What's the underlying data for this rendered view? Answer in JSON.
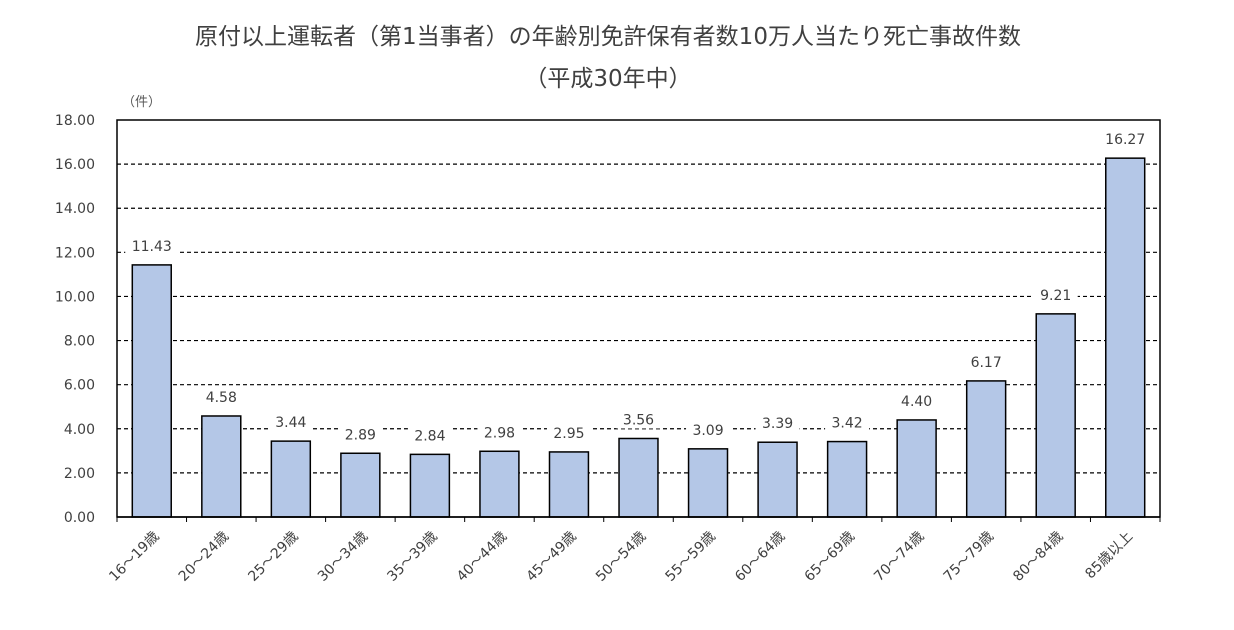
{
  "chart_data": {
    "type": "bar",
    "title_line1": "原付以上運転者（第1当事者）の年齢別免許保有者数10万人当たり死亡事故件数",
    "title_line2": "（平成30年中）",
    "unit_label": "（件）",
    "xlabel": "",
    "ylabel": "",
    "ylim": [
      0,
      18
    ],
    "yticks": [
      "0.00",
      "2.00",
      "4.00",
      "6.00",
      "8.00",
      "10.00",
      "12.00",
      "14.00",
      "16.00",
      "18.00"
    ],
    "grid": true,
    "legend": "none",
    "bar_color": "#b4c7e7",
    "categories": [
      "16～19歳",
      "20～24歳",
      "25～29歳",
      "30～34歳",
      "35～39歳",
      "40～44歳",
      "45～49歳",
      "50～54歳",
      "55～59歳",
      "60～64歳",
      "65～69歳",
      "70～74歳",
      "75～79歳",
      "80～84歳",
      "85歳以上"
    ],
    "values": [
      11.43,
      4.58,
      3.44,
      2.89,
      2.84,
      2.98,
      2.95,
      3.56,
      3.09,
      3.39,
      3.42,
      4.4,
      6.17,
      9.21,
      16.27
    ],
    "value_labels": [
      "11.43",
      "4.58",
      "3.44",
      "2.89",
      "2.84",
      "2.98",
      "2.95",
      "3.56",
      "3.09",
      "3.39",
      "3.42",
      "4.40",
      "6.17",
      "9.21",
      "16.27"
    ]
  }
}
